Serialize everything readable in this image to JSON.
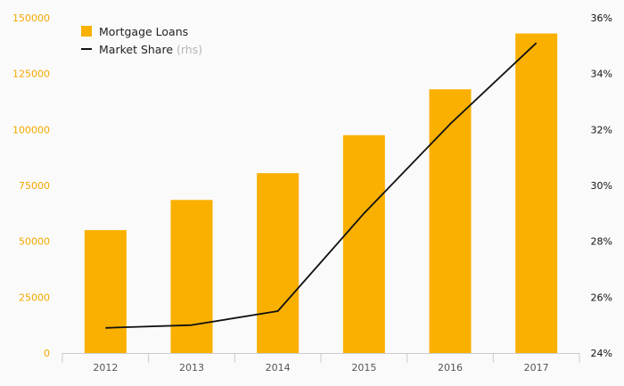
{
  "chart_data": {
    "type": "bar",
    "categories": [
      "2012",
      "2013",
      "2014",
      "2015",
      "2016",
      "2017"
    ],
    "series": [
      {
        "name": "Mortgage Loans",
        "type": "bar",
        "axis": "left",
        "color": "#f9b000",
        "values": [
          55000,
          68500,
          80500,
          97500,
          118000,
          143000
        ]
      },
      {
        "name": "Market Share",
        "name_suffix": "(rhs)",
        "type": "line",
        "axis": "right",
        "color": "#111111",
        "values": [
          24.9,
          25.0,
          25.5,
          29.0,
          32.2,
          35.1
        ]
      }
    ],
    "y_left": {
      "ylim": [
        0,
        150000
      ],
      "ticks": [
        0,
        25000,
        50000,
        75000,
        100000,
        125000,
        150000
      ],
      "tick_labels": [
        "0",
        "25000",
        "50000",
        "75000",
        "100000",
        "125000",
        "150000"
      ],
      "tick_color": "#f5a800"
    },
    "y_right": {
      "ylim": [
        24,
        36
      ],
      "ticks": [
        24,
        26,
        28,
        30,
        32,
        34,
        36
      ],
      "tick_labels": [
        "24%",
        "26%",
        "28%",
        "30%",
        "32%",
        "34%",
        "36%"
      ],
      "tick_color": "#111111"
    },
    "title": "",
    "xlabel": "",
    "ylabel": "",
    "grid": false,
    "legend": "top-left"
  }
}
